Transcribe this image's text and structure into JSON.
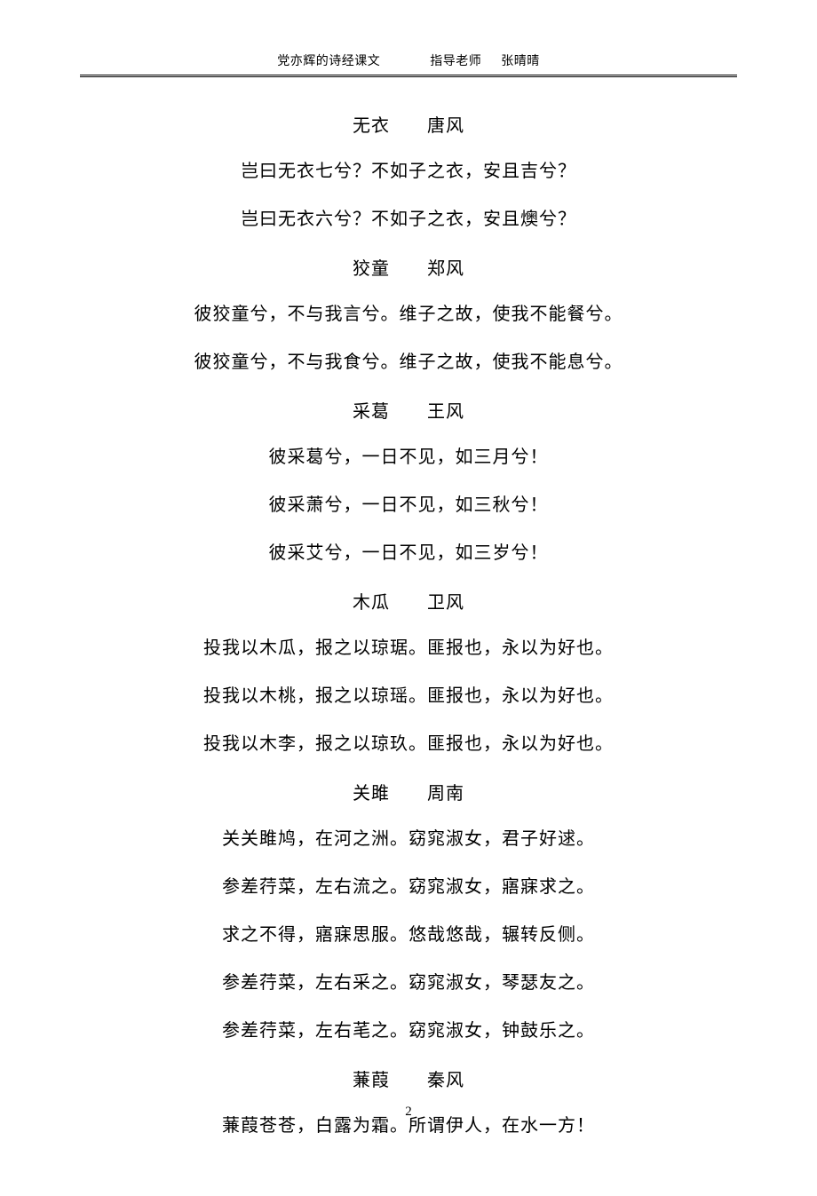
{
  "header": {
    "left": "党亦辉的诗经课文",
    "right_label": "指导老师",
    "right_name": "张晴晴"
  },
  "poems": [
    {
      "title_main": "无衣",
      "title_sub": "唐风",
      "lines": [
        "岂曰无衣七兮？不如子之衣，安且吉兮？",
        "岂曰无衣六兮？不如子之衣，安且燠兮？"
      ]
    },
    {
      "title_main": "狡童",
      "title_sub": "郑风",
      "lines": [
        "彼狡童兮，不与我言兮。维子之故，使我不能餐兮。",
        "彼狡童兮，不与我食兮。维子之故，使我不能息兮。"
      ]
    },
    {
      "title_main": "采葛",
      "title_sub": "王风",
      "lines": [
        "彼采葛兮，一日不见，如三月兮！",
        "彼采萧兮，一日不见，如三秋兮！",
        "彼采艾兮，一日不见，如三岁兮！"
      ]
    },
    {
      "title_main": "木瓜",
      "title_sub": "卫风",
      "lines": [
        "投我以木瓜，报之以琼琚。匪报也，永以为好也。",
        "投我以木桃，报之以琼瑶。匪报也，永以为好也。",
        "投我以木李，报之以琼玖。匪报也，永以为好也。"
      ]
    },
    {
      "title_main": "关雎",
      "title_sub": "周南",
      "lines": [
        "关关雎鸠，在河之洲。窈窕淑女，君子好逑。",
        "参差荇菜，左右流之。窈窕淑女，寤寐求之。",
        "求之不得，寤寐思服。悠哉悠哉，辗转反侧。",
        "参差荇菜，左右采之。窈窕淑女，琴瑟友之。",
        "参差荇菜，左右芼之。窈窕淑女，钟鼓乐之。"
      ]
    },
    {
      "title_main": "蒹葭",
      "title_sub": "秦风",
      "lines": [
        "蒹葭苍苍，白露为霜。所谓伊人，在水一方！"
      ]
    }
  ],
  "page_number": "2",
  "colors": {
    "text": "#000000",
    "background": "#ffffff"
  },
  "typography": {
    "header_fontsize_pt": 10,
    "body_fontsize_pt": 15,
    "font_family": "SimSun"
  }
}
